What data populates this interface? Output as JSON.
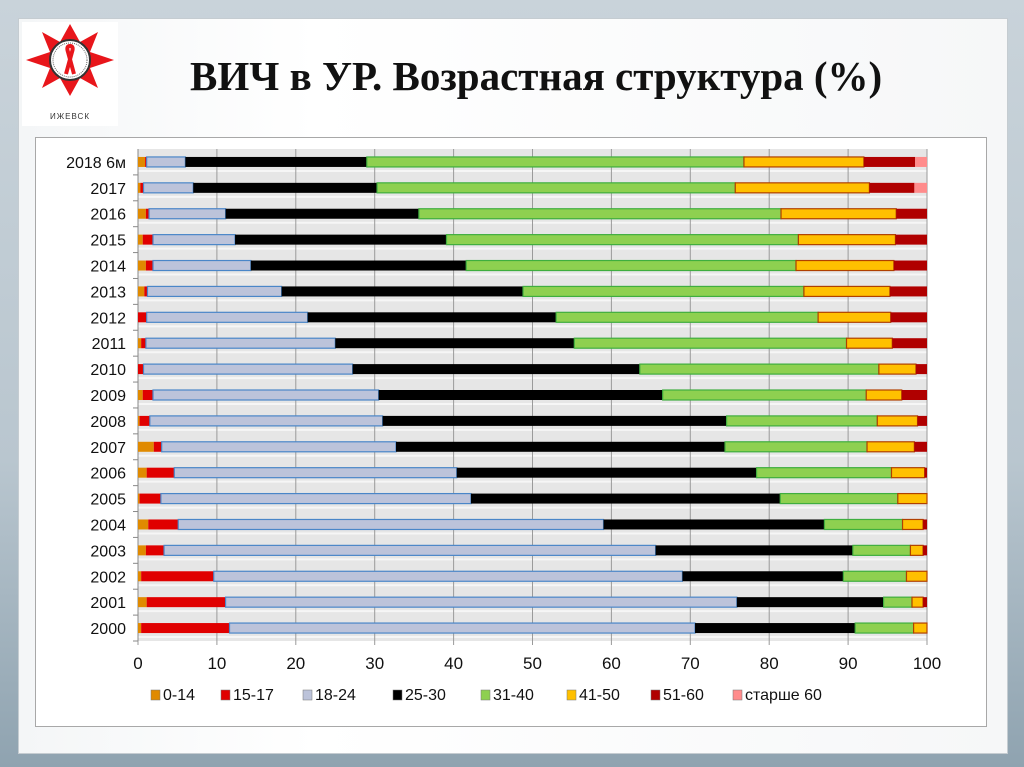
{
  "slide": {
    "title": "ВИЧ в УР. Возрастная структура (%)",
    "logo_text": "ИЖЕВСК"
  },
  "chart_data": {
    "type": "bar",
    "orientation": "horizontal",
    "stacked": true,
    "title": "",
    "xlabel": "",
    "ylabel": "",
    "xlim": [
      0,
      100
    ],
    "xticks": [
      "0",
      "10",
      "20",
      "30",
      "40",
      "50",
      "60",
      "70",
      "80",
      "90",
      "100"
    ],
    "grid": "vertical",
    "legend_position": "bottom",
    "categories": [
      "2018 6м",
      "2017",
      "2016",
      "2015",
      "2014",
      "2013",
      "2012",
      "2011",
      "2010",
      "2009",
      "2008",
      "2007",
      "2006",
      "2005",
      "2004",
      "2003",
      "2002",
      "2001",
      "2000"
    ],
    "series": [
      {
        "name": "0-14",
        "color": "#e08a00",
        "values": [
          0.9,
          0.3,
          1.0,
          0.6,
          1.0,
          0.8,
          0,
          0.4,
          0,
          0.6,
          0.2,
          2.0,
          1.1,
          0.2,
          1.3,
          1.0,
          0.4,
          1.1,
          0.4
        ]
      },
      {
        "name": "15-17",
        "color": "#e00000",
        "values": [
          0.2,
          0.4,
          0.4,
          1.3,
          0.9,
          0.4,
          1.1,
          0.6,
          0.7,
          1.3,
          1.3,
          1.0,
          3.5,
          2.7,
          3.8,
          2.3,
          9.2,
          10.0,
          11.2
        ]
      },
      {
        "name": "18-24",
        "color": "#bcc3da",
        "values": [
          4.9,
          6.3,
          9.7,
          10.4,
          12.4,
          17.0,
          20.4,
          24.0,
          26.5,
          28.6,
          29.5,
          29.7,
          35.8,
          39.3,
          53.9,
          62.3,
          59.4,
          64.8,
          59.0
        ]
      },
      {
        "name": "25-30",
        "color": "#000000",
        "values": [
          23.0,
          23.3,
          24.5,
          26.8,
          27.3,
          30.6,
          31.5,
          30.3,
          36.4,
          36.0,
          43.6,
          41.7,
          38.0,
          39.2,
          28.0,
          25.0,
          20.4,
          18.6,
          20.3
        ]
      },
      {
        "name": "31-40",
        "color": "#8ed050",
        "values": [
          47.8,
          45.4,
          45.9,
          44.6,
          41.8,
          35.6,
          33.2,
          34.5,
          30.3,
          25.8,
          19.1,
          18.0,
          17.1,
          14.9,
          9.9,
          7.3,
          8.0,
          3.6,
          7.4
        ]
      },
      {
        "name": "41-50",
        "color": "#ffc000",
        "values": [
          15.2,
          17.0,
          14.6,
          12.3,
          12.4,
          10.9,
          9.2,
          5.8,
          4.7,
          4.5,
          5.1,
          6.0,
          4.2,
          3.7,
          2.6,
          1.6,
          2.6,
          1.4,
          1.7
        ]
      },
      {
        "name": "51-60",
        "color": "#b00000",
        "values": [
          6.5,
          5.7,
          3.9,
          4.0,
          4.2,
          4.7,
          4.6,
          4.4,
          1.4,
          3.2,
          1.2,
          1.6,
          0.3,
          0,
          0.5,
          0.5,
          0,
          0.5,
          0
        ]
      },
      {
        "name": "старше 60",
        "color": "#ff8c8c",
        "values": [
          1.5,
          1.6,
          0,
          0,
          0,
          0,
          0,
          0,
          0,
          0,
          0,
          0,
          0,
          0,
          0,
          0,
          0,
          0,
          0
        ]
      }
    ]
  }
}
